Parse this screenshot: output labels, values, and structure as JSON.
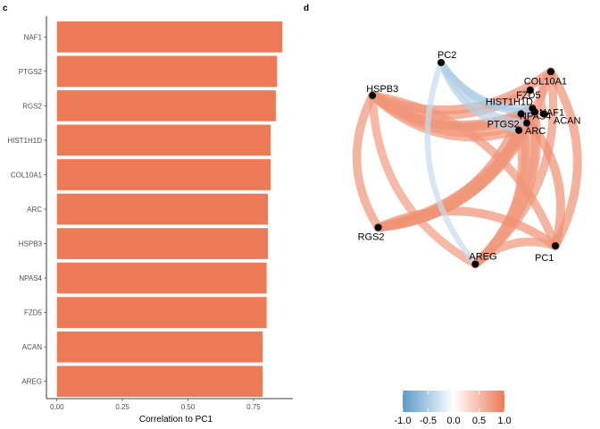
{
  "panels": {
    "left_tag": "c",
    "right_tag": "d"
  },
  "chart_data": [
    {
      "type": "bar",
      "orientation": "horizontal",
      "categories": [
        "NAF1",
        "PTGS2",
        "RGS2",
        "HIST1H1D",
        "COL10A1",
        "ARC",
        "HSPB3",
        "NPAS4",
        "FZD5",
        "ACAN",
        "AREG"
      ],
      "values": [
        0.86,
        0.84,
        0.835,
        0.815,
        0.815,
        0.805,
        0.805,
        0.8,
        0.8,
        0.785,
        0.785
      ],
      "xlabel": "Correlation to PC1",
      "xlim": [
        -0.04,
        0.9
      ],
      "xticks": [
        0,
        0.25,
        0.5,
        0.75
      ],
      "xtick_labels": [
        "0.00",
        "0.25",
        "0.50",
        "0.75"
      ],
      "bar_color": "#EC7A56",
      "grid": false
    },
    {
      "type": "network",
      "nodes": [
        {
          "name": "COL10A1",
          "x": 0.96,
          "y": 0.95
        },
        {
          "name": "FZD5",
          "x": 0.78,
          "y": 0.85
        },
        {
          "name": "HIST1H1D",
          "x": 0.8,
          "y": 0.75
        },
        {
          "name": "NAF1",
          "x": 0.82,
          "y": 0.73
        },
        {
          "name": "ACAN",
          "x": 0.9,
          "y": 0.72
        },
        {
          "name": "HSPB3",
          "x": -0.6,
          "y": 0.82
        },
        {
          "name": "PTGS2",
          "x": 0.7,
          "y": 0.72
        },
        {
          "name": "NPAS4",
          "x": 0.75,
          "y": 0.67
        },
        {
          "name": "ARC",
          "x": 0.68,
          "y": 0.63
        },
        {
          "name": "PC1",
          "x": 1.0,
          "y": 0.0
        },
        {
          "name": "PC2",
          "x": 0.0,
          "y": 1.0
        },
        {
          "name": "RGS2",
          "x": -0.55,
          "y": 0.1
        },
        {
          "name": "AREG",
          "x": 0.3,
          "y": -0.1
        }
      ],
      "edges": [
        {
          "from": "HSPB3",
          "to": "COL10A1",
          "r": 0.85
        },
        {
          "from": "HSPB3",
          "to": "HIST1H1D",
          "r": 0.8
        },
        {
          "from": "HSPB3",
          "to": "NAF1",
          "r": 0.82
        },
        {
          "from": "HSPB3",
          "to": "PTGS2",
          "r": 0.8
        },
        {
          "from": "HSPB3",
          "to": "ARC",
          "r": 0.78
        },
        {
          "from": "HSPB3",
          "to": "NPAS4",
          "r": 0.78
        },
        {
          "from": "HSPB3",
          "to": "FZD5",
          "r": 0.8
        },
        {
          "from": "HSPB3",
          "to": "RGS2",
          "r": 0.8
        },
        {
          "from": "HSPB3",
          "to": "AREG",
          "r": 0.75
        },
        {
          "from": "RGS2",
          "to": "COL10A1",
          "r": 0.8
        },
        {
          "from": "RGS2",
          "to": "NAF1",
          "r": 0.82
        },
        {
          "from": "RGS2",
          "to": "PTGS2",
          "r": 0.85
        },
        {
          "from": "RGS2",
          "to": "ARC",
          "r": 0.82
        },
        {
          "from": "RGS2",
          "to": "NPAS4",
          "r": 0.8
        },
        {
          "from": "RGS2",
          "to": "HIST1H1D",
          "r": 0.78
        },
        {
          "from": "AREG",
          "to": "COL10A1",
          "r": 0.78
        },
        {
          "from": "AREG",
          "to": "NAF1",
          "r": 0.78
        },
        {
          "from": "AREG",
          "to": "PTGS2",
          "r": 0.8
        },
        {
          "from": "AREG",
          "to": "ARC",
          "r": 0.8
        },
        {
          "from": "AREG",
          "to": "HIST1H1D",
          "r": 0.75
        },
        {
          "from": "AREG",
          "to": "NPAS4",
          "r": 0.75
        },
        {
          "from": "PC1",
          "to": "COL10A1",
          "r": 0.82
        },
        {
          "from": "PC1",
          "to": "PTGS2",
          "r": 0.84
        },
        {
          "from": "PC1",
          "to": "HSPB3",
          "r": 0.8
        },
        {
          "from": "PC1",
          "to": "RGS2",
          "r": 0.83
        },
        {
          "from": "PC1",
          "to": "AREG",
          "r": 0.78
        },
        {
          "from": "COL10A1",
          "to": "ACAN",
          "r": 0.75
        },
        {
          "from": "PTGS2",
          "to": "ARC",
          "r": 0.8
        },
        {
          "from": "PC2",
          "to": "NAF1",
          "r": -0.55
        },
        {
          "from": "PC2",
          "to": "HIST1H1D",
          "r": -0.5
        },
        {
          "from": "PC2",
          "to": "NPAS4",
          "r": -0.45
        },
        {
          "from": "PC2",
          "to": "ARC",
          "r": -0.45
        },
        {
          "from": "PC2",
          "to": "AREG",
          "r": -0.35
        }
      ],
      "colorbar": {
        "range": [
          -1,
          1
        ],
        "ticks": [
          -1.0,
          -0.5,
          0.0,
          0.5,
          1.0
        ],
        "tick_labels": [
          "-1.0",
          "-0.5",
          "0.0",
          "0.5",
          "1.0"
        ],
        "low_color": "#5B9BC8",
        "mid_color": "#FFFFFF",
        "high_color": "#EC7A56"
      }
    }
  ]
}
